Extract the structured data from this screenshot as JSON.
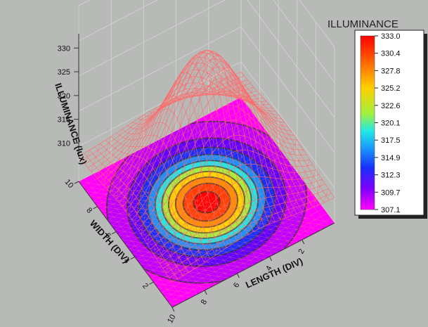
{
  "chart_data": {
    "type": "surface3d",
    "title": "",
    "xlabel": "LENGTH (DIV)",
    "ylabel": "WIDTH (DIV)",
    "zlabel": "ILLUMINANCE (lux)",
    "x_range": [
      0,
      10
    ],
    "y_range": [
      0,
      10
    ],
    "z_range": [
      307.1,
      333.0
    ],
    "x_ticks": [
      "2",
      "4",
      "6",
      "8",
      "10"
    ],
    "y_ticks": [
      "2",
      "4",
      "6",
      "8",
      "10"
    ],
    "z_ticks": [
      "310",
      "315",
      "320",
      "325",
      "330"
    ],
    "peak": {
      "x": 5,
      "y": 5,
      "z": 333.0
    },
    "min_z": 307.1,
    "grid": true,
    "projected_contour": true,
    "surface_color": "#ff6a6a",
    "legend": {
      "title": "ILLUMINANCE",
      "placement": "right",
      "levels": [
        "333.0",
        "330.4",
        "327.8",
        "325.2",
        "322.6",
        "320.1",
        "317.5",
        "314.9",
        "312.3",
        "309.7",
        "307.1"
      ],
      "colors": [
        "#ff0000",
        "#ff4000",
        "#ff9000",
        "#ffd800",
        "#a8f040",
        "#20e8e8",
        "#1890ff",
        "#1830ff",
        "#6000ff",
        "#c000ff",
        "#ff00ff"
      ]
    }
  }
}
